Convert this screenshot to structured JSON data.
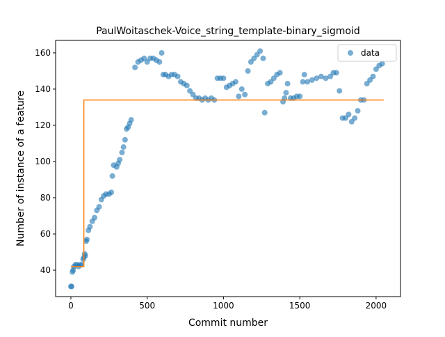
{
  "chart_data": {
    "type": "scatter",
    "title": "PaulWoitaschek-Voice_string_template-binary_sigmoid",
    "x_label": "Commit number",
    "y_label": "Number of instance of a feature",
    "xlim": [
      -100,
      2160
    ],
    "ylim": [
      25.4,
      166.9
    ],
    "xticks": [
      0,
      500,
      1000,
      1500,
      2000
    ],
    "yticks": [
      40,
      60,
      80,
      100,
      120,
      140,
      160
    ],
    "legend": "upper right",
    "series": [
      {
        "name": "data",
        "color": "#1f77b4",
        "x": [
          0,
          5,
          10,
          15,
          20,
          30,
          40,
          50,
          60,
          70,
          80,
          85,
          90,
          95,
          100,
          105,
          115,
          125,
          140,
          155,
          170,
          185,
          200,
          215,
          230,
          250,
          265,
          272,
          280,
          300,
          310,
          320,
          335,
          345,
          355,
          365,
          375,
          385,
          395,
          420,
          440,
          460,
          480,
          500,
          520,
          540,
          560,
          580,
          595,
          605,
          620,
          640,
          660,
          680,
          700,
          720,
          740,
          760,
          780,
          800,
          820,
          840,
          860,
          880,
          900,
          920,
          940,
          960,
          980,
          1000,
          1020,
          1040,
          1060,
          1080,
          1100,
          1120,
          1140,
          1160,
          1180,
          1200,
          1220,
          1240,
          1260,
          1270,
          1290,
          1310,
          1330,
          1350,
          1370,
          1390,
          1400,
          1410,
          1420,
          1440,
          1460,
          1480,
          1500,
          1520,
          1530,
          1550,
          1580,
          1610,
          1640,
          1670,
          1700,
          1720,
          1740,
          1760,
          1780,
          1800,
          1820,
          1840,
          1860,
          1880,
          1900,
          1920,
          1940,
          1960,
          1980,
          2000,
          2020,
          2040
        ],
        "values": [
          31,
          31,
          39,
          40,
          42,
          43,
          43,
          42,
          43,
          43,
          46,
          47,
          49,
          48,
          56,
          57,
          62,
          64,
          67,
          69,
          73,
          75,
          79,
          81,
          82,
          82,
          83,
          92,
          98,
          97,
          99,
          101,
          105,
          108,
          112,
          118,
          119,
          121,
          123,
          152,
          155,
          156,
          157,
          155,
          157,
          157,
          156,
          155,
          160,
          148,
          148,
          147,
          148,
          148,
          147,
          144,
          143,
          142,
          139,
          137,
          135,
          135,
          134,
          135,
          134,
          135,
          134,
          146,
          146,
          146,
          141,
          142,
          143,
          144,
          136,
          140,
          137,
          150,
          155,
          157,
          159,
          161,
          157,
          127,
          143,
          144,
          146,
          148,
          149,
          133,
          135,
          138,
          143,
          135,
          135,
          136,
          136,
          144,
          148,
          144,
          145,
          146,
          147,
          146,
          147,
          149,
          149,
          139,
          124,
          124,
          126,
          122,
          124,
          128,
          134,
          134,
          143,
          145,
          147,
          151,
          153,
          154
        ]
      }
    ],
    "fit": {
      "color": "#ff7f0e",
      "x": [
        0,
        85,
        85,
        2050
      ],
      "values": [
        42,
        42,
        134,
        134
      ]
    }
  }
}
